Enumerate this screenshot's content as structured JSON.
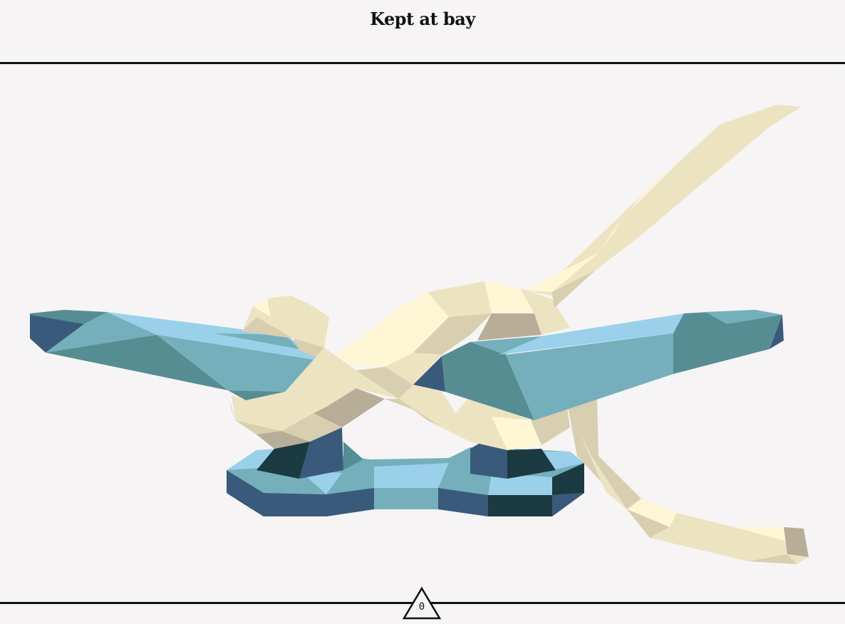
{
  "header": {
    "title": "Kept at bay"
  },
  "footer": {
    "counter_value": "0"
  },
  "scene": {
    "subject_icon": "cleat-with-rope-knot",
    "palette": {
      "cleat_light": "#9ad0ea",
      "cleat_mid": "#74afbb",
      "cleat_teal": "#568d92",
      "cleat_dark": "#3a5a7c",
      "cleat_darkest": "#1b3a42",
      "rope_light": "#fff6d5",
      "rope_mid": "#ece3c1",
      "rope_shade": "#d8ceb0",
      "rope_dark": "#b8ae98",
      "background": "#f6f4f5",
      "ink": "#111111"
    }
  }
}
